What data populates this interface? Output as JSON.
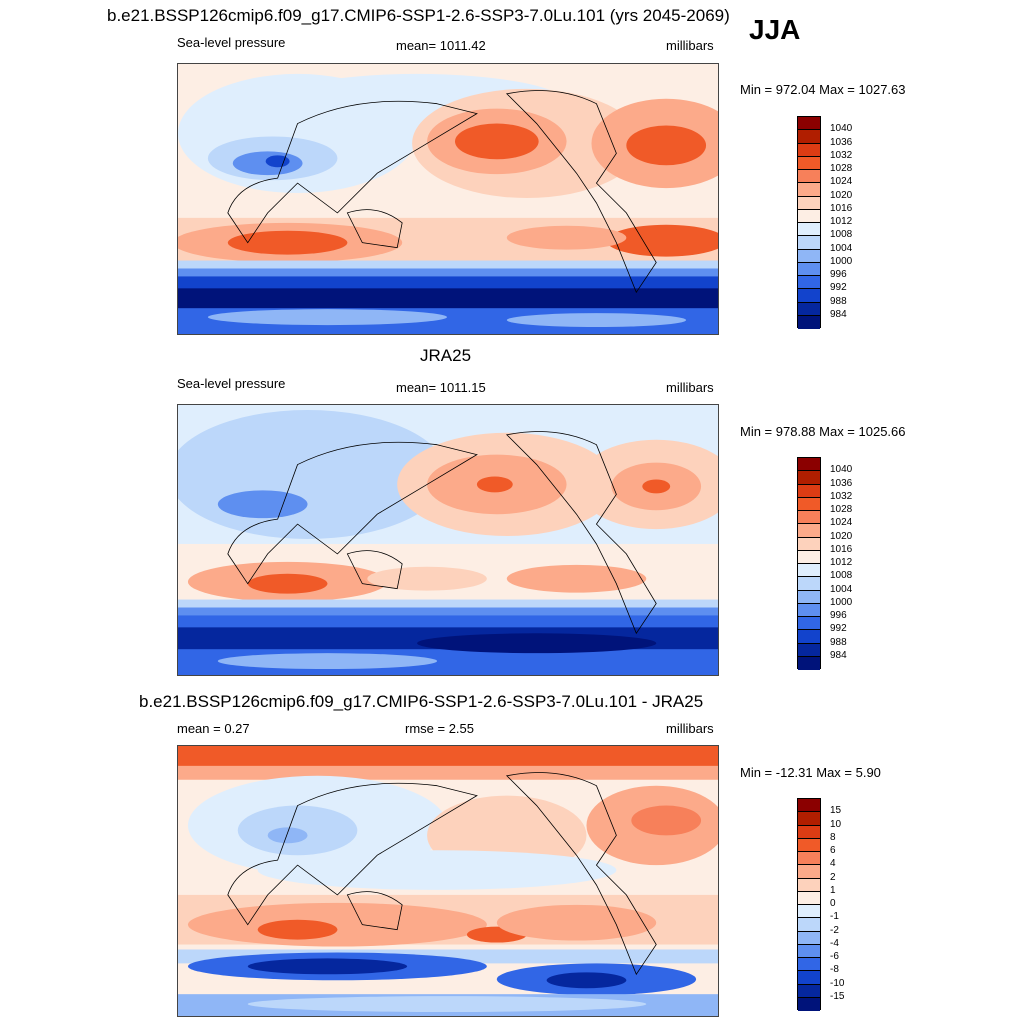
{
  "season": "JJA",
  "panels": [
    {
      "title": "b.e21.BSSP126cmip6.f09_g17.CMIP6-SSP1-2.6-SSP3-7.0Lu.101 (yrs 2045-2069)",
      "left_label": "Sea-level pressure",
      "center_label": "mean= 1011.42",
      "right_label": "millibars",
      "minmax": "Min = 972.04 Max = 1027.63"
    },
    {
      "title": "JRA25",
      "left_label": "Sea-level pressure",
      "center_label": "mean= 1011.15",
      "right_label": "millibars",
      "minmax": "Min = 978.88 Max = 1025.66"
    },
    {
      "title": "b.e21.BSSP126cmip6.f09_g17.CMIP6-SSP1-2.6-SSP3-7.0Lu.101 - JRA25",
      "left_label": "mean =   0.27",
      "center_label": "rmse =   2.55",
      "right_label": "millibars",
      "minmax": "Min = -12.31 Max =   5.90"
    }
  ],
  "colorbars": {
    "abs": {
      "labels": [
        "1040",
        "1036",
        "1032",
        "1028",
        "1024",
        "1020",
        "1016",
        "1012",
        "1008",
        "1004",
        "1000",
        "996",
        "992",
        "988",
        "984"
      ],
      "colors": [
        "#8b0000",
        "#b01e00",
        "#dc3c14",
        "#f05a28",
        "#f7805a",
        "#fcaa8a",
        "#fdd2bc",
        "#fdeee4",
        "#dfeefd",
        "#bcd7fa",
        "#8fb6f6",
        "#5e8ff0",
        "#3166e6",
        "#1243cc",
        "#05279e",
        "#00137a"
      ]
    },
    "diff": {
      "labels": [
        "15",
        "10",
        "8",
        "6",
        "4",
        "2",
        "1",
        "0",
        "-1",
        "-2",
        "-4",
        "-6",
        "-8",
        "-10",
        "-15"
      ],
      "colors": [
        "#8b0000",
        "#b01e00",
        "#dc3c14",
        "#f05a28",
        "#f7805a",
        "#fcaa8a",
        "#fdd2bc",
        "#fdeee4",
        "#dfeefd",
        "#bcd7fa",
        "#8fb6f6",
        "#5e8ff0",
        "#3166e6",
        "#1243cc",
        "#05279e",
        "#00137a"
      ]
    }
  },
  "chart_data": [
    {
      "type": "heatmap",
      "title": "b.e21.BSSP126cmip6.f09_g17.CMIP6-SSP1-2.6-SSP3-7.0Lu.101 (yrs 2045-2069)",
      "variable": "Sea-level pressure",
      "units": "millibars",
      "season": "JJA",
      "mean": 1011.42,
      "min": 972.04,
      "max": 1027.63,
      "contour_levels": [
        984,
        988,
        992,
        996,
        1000,
        1004,
        1008,
        1012,
        1016,
        1020,
        1024,
        1028,
        1032,
        1036,
        1040
      ]
    },
    {
      "type": "heatmap",
      "title": "JRA25",
      "variable": "Sea-level pressure",
      "units": "millibars",
      "season": "JJA",
      "mean": 1011.15,
      "min": 978.88,
      "max": 1025.66,
      "contour_levels": [
        984,
        988,
        992,
        996,
        1000,
        1004,
        1008,
        1012,
        1016,
        1020,
        1024,
        1028,
        1032,
        1036,
        1040
      ]
    },
    {
      "type": "heatmap",
      "title": "b.e21.BSSP126cmip6.f09_g17.CMIP6-SSP1-2.6-SSP3-7.0Lu.101 - JRA25",
      "units": "millibars",
      "mean": 0.27,
      "rmse": 2.55,
      "min": -12.31,
      "max": 5.9,
      "contour_levels": [
        -15,
        -10,
        -8,
        -6,
        -4,
        -2,
        -1,
        0,
        1,
        2,
        4,
        6,
        8,
        10,
        15
      ]
    }
  ]
}
